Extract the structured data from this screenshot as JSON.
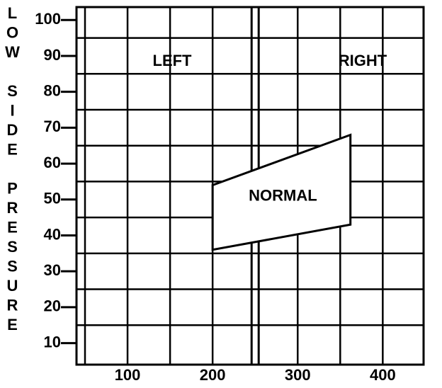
{
  "chart_data": {
    "type": "polygon",
    "ylabel": "LOW SIDE PRESSURE",
    "annotations": [
      "LEFT",
      "RIGHT"
    ],
    "regions": [
      {
        "name": "NORMAL",
        "x": [
          200,
          362,
          362,
          200
        ],
        "y": [
          54,
          68,
          43,
          36
        ]
      }
    ],
    "xlim": [
      40,
      448
    ],
    "ylim": [
      4,
      103.6
    ],
    "xticks": [
      100,
      200,
      300,
      400
    ],
    "yticks": [
      10,
      20,
      30,
      40,
      50,
      60,
      70,
      80,
      90,
      100
    ],
    "xgrid": [
      50,
      100,
      150,
      200,
      300,
      350,
      400
    ],
    "ygrid": [
      15,
      25,
      35,
      45,
      55,
      65,
      75,
      85,
      95
    ],
    "divider": 250,
    "color": "#000000"
  }
}
